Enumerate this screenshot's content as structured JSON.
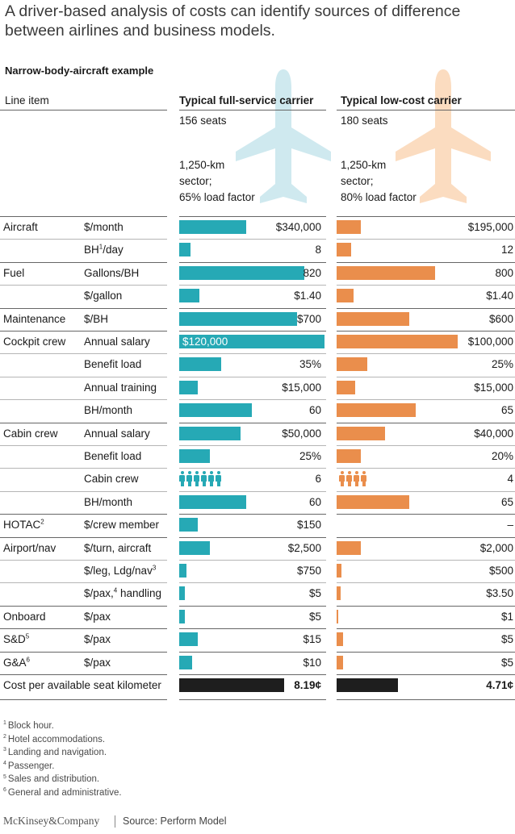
{
  "title": "A driver-based analysis of costs can identify sources of difference between airlines and business models.",
  "subtitle": "Narrow-body-aircraft example",
  "colors": {
    "full_service": "#26a9b5",
    "low_cost": "#ea8e4c",
    "total": "#1e1e1e",
    "plane_full": "#cfe9ef",
    "plane_low": "#fbdcc0"
  },
  "icons": {
    "plane": "airplane-icon",
    "person": "person-icon"
  },
  "chart_data": {
    "type": "bar",
    "title": "A driver-based analysis of costs can identify sources of difference between airlines and business models.",
    "subtitle": "Narrow-body-aircraft example",
    "columns": {
      "line_item": "Line item",
      "full_service": "Typical full-service carrier",
      "low_cost": "Typical low-cost carrier"
    },
    "specs": {
      "full_service": {
        "seats": "156 seats",
        "sector_1": "1,250-km",
        "sector_2": "sector;",
        "load": "65% load factor"
      },
      "low_cost": {
        "seats": "180 seats",
        "sector_1": "1,250-km",
        "sector_2": "sector;",
        "load": "80% load factor"
      }
    },
    "series": [
      {
        "name": "Typical full-service carrier"
      },
      {
        "name": "Typical low-cost carrier"
      }
    ],
    "rows": [
      {
        "category": "Aircraft",
        "unit": "$/month",
        "unit_sup": "",
        "unit_rest": "",
        "full": 340000,
        "full_label": "$340,000",
        "low": 195000,
        "low_label": "$195,000",
        "full_frac": 0.46,
        "low_frac": 0.2
      },
      {
        "category": "",
        "unit": "BH",
        "unit_sup": "1",
        "unit_rest": "/day",
        "full": 8,
        "full_label": "8",
        "low": 12,
        "low_label": "12",
        "full_frac": 0.08,
        "low_frac": 0.12
      },
      {
        "category": "Fuel",
        "unit": "Gallons/BH",
        "unit_sup": "",
        "unit_rest": "",
        "full": 820,
        "full_label": "820",
        "low": 800,
        "low_label": "800",
        "full_frac": 0.86,
        "low_frac": 0.81
      },
      {
        "category": "",
        "unit": "$/gallon",
        "unit_sup": "",
        "unit_rest": "",
        "full": 1.4,
        "full_label": "$1.40",
        "low": 1.4,
        "low_label": "$1.40",
        "full_frac": 0.14,
        "low_frac": 0.14
      },
      {
        "category": "Maintenance",
        "unit": "$/BH",
        "unit_sup": "",
        "unit_rest": "",
        "full": 700,
        "full_label": "$700",
        "low": 600,
        "low_label": "$600",
        "full_frac": 0.81,
        "low_frac": 0.6
      },
      {
        "category": "Cockpit crew",
        "unit": "Annual salary",
        "unit_sup": "",
        "unit_rest": "",
        "full": 120000,
        "full_label": "$120,000",
        "low": 100000,
        "low_label": "$100,000",
        "full_frac": 1.0,
        "low_frac": 1.0,
        "full_label_in_bar": true
      },
      {
        "category": "",
        "unit": "Benefit load",
        "unit_sup": "",
        "unit_rest": "",
        "full": 35,
        "full_label": "35%",
        "low": 25,
        "low_label": "25%",
        "full_frac": 0.29,
        "low_frac": 0.25
      },
      {
        "category": "",
        "unit": "Annual training",
        "unit_sup": "",
        "unit_rest": "",
        "full": 15000,
        "full_label": "$15,000",
        "low": 15000,
        "low_label": "$15,000",
        "full_frac": 0.13,
        "low_frac": 0.15
      },
      {
        "category": "",
        "unit": "BH/month",
        "unit_sup": "",
        "unit_rest": "",
        "full": 60,
        "full_label": "60",
        "low": 65,
        "low_label": "65",
        "full_frac": 0.5,
        "low_frac": 0.65
      },
      {
        "category": "Cabin crew",
        "unit": "Annual salary",
        "unit_sup": "",
        "unit_rest": "",
        "full": 50000,
        "full_label": "$50,000",
        "low": 40000,
        "low_label": "$40,000",
        "full_frac": 0.42,
        "low_frac": 0.4
      },
      {
        "category": "",
        "unit": "Benefit load",
        "unit_sup": "",
        "unit_rest": "",
        "full": 25,
        "full_label": "25%",
        "low": 20,
        "low_label": "20%",
        "full_frac": 0.21,
        "low_frac": 0.2
      },
      {
        "category": "",
        "unit": "Cabin crew",
        "unit_sup": "",
        "unit_rest": "",
        "full": 6,
        "full_label": "6",
        "low": 4,
        "low_label": "4",
        "people": true
      },
      {
        "category": "",
        "unit": "BH/month",
        "unit_sup": "",
        "unit_rest": "",
        "full": 60,
        "full_label": "60",
        "low": 65,
        "low_label": "65",
        "full_frac": 0.46,
        "low_frac": 0.6
      },
      {
        "category": "HOTAC",
        "category_sup": "2",
        "unit": "$/crew member",
        "unit_sup": "",
        "unit_rest": "",
        "full": 150,
        "full_label": "$150",
        "low": null,
        "low_label": "–",
        "full_frac": 0.13,
        "low_frac": 0
      },
      {
        "category": "Airport/nav",
        "unit": "$/turn, aircraft",
        "unit_sup": "",
        "unit_rest": "",
        "full": 2500,
        "full_label": "$2,500",
        "low": 2000,
        "low_label": "$2,000",
        "full_frac": 0.21,
        "low_frac": 0.2
      },
      {
        "category": "",
        "unit": "$/leg, Ldg/nav",
        "unit_sup": "3",
        "unit_rest": "",
        "full": 750,
        "full_label": "$750",
        "low": 500,
        "low_label": "$500",
        "full_frac": 0.05,
        "low_frac": 0.04
      },
      {
        "category": "",
        "unit": "$/pax,",
        "unit_sup": "4",
        "unit_rest": " handling",
        "full": 5,
        "full_label": "$5",
        "low": 3.5,
        "low_label": "$3.50",
        "full_frac": 0.04,
        "low_frac": 0.03
      },
      {
        "category": "Onboard",
        "unit": "$/pax",
        "unit_sup": "",
        "unit_rest": "",
        "full": 5,
        "full_label": "$5",
        "low": 1,
        "low_label": "$1",
        "full_frac": 0.04,
        "low_frac": 0.008
      },
      {
        "category": "S&D",
        "category_sup": "5",
        "unit": "$/pax",
        "unit_sup": "",
        "unit_rest": "",
        "full": 15,
        "full_label": "$15",
        "low": 5,
        "low_label": "$5",
        "full_frac": 0.13,
        "low_frac": 0.05
      },
      {
        "category": "G&A",
        "category_sup": "6",
        "unit": "$/pax",
        "unit_sup": "",
        "unit_rest": "",
        "full": 10,
        "full_label": "$10",
        "low": 5,
        "low_label": "$5",
        "full_frac": 0.09,
        "low_frac": 0.05
      }
    ],
    "total": {
      "category": "Cost per available seat kilometer",
      "full": 8.19,
      "full_label": "8.19¢",
      "low": 4.71,
      "low_label": "4.71¢",
      "full_frac": 0.72,
      "low_frac": 0.38
    }
  },
  "footnotes": [
    {
      "num": "1",
      "text": "Block hour."
    },
    {
      "num": "2",
      "text": "Hotel accommodations."
    },
    {
      "num": "3",
      "text": "Landing and navigation."
    },
    {
      "num": "4",
      "text": "Passenger."
    },
    {
      "num": "5",
      "text": "Sales and distribution."
    },
    {
      "num": "6",
      "text": "General and administrative."
    }
  ],
  "brand": "McKinsey&Company",
  "source": "Source: Perform Model"
}
